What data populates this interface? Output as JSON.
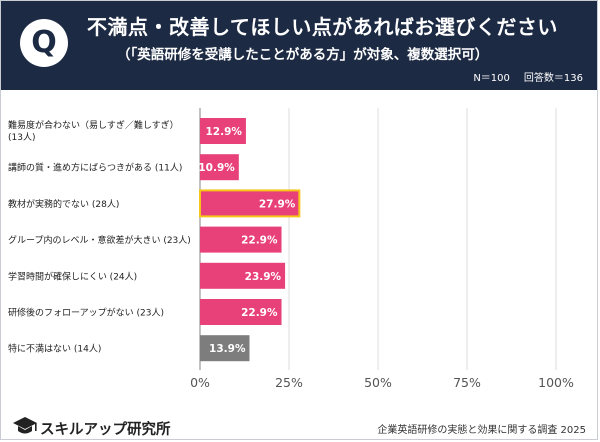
{
  "header": {
    "q_mark": "Q",
    "question": "不満点・改善してほしい点があればお選びください",
    "subtitle": "（「英語研修を受講したことがある方」が対象、複数選択可）",
    "sample_size": "N＝100",
    "answer_count": "回答数＝136"
  },
  "chart_data": {
    "type": "bar",
    "orientation": "horizontal",
    "categories": [
      [
        "難易度が合わない（易しすぎ／難しすぎ）",
        "(13人)"
      ],
      [
        "講師の質・進め方にばらつきがある (11人)"
      ],
      [
        "教材が実務的でない (28人)"
      ],
      [
        "グループ内のレベル・意欲差が大きい (23人)"
      ],
      [
        "学習時間が確保しにくい (24人)"
      ],
      [
        "研修後のフォローアップがない (23人)"
      ],
      [
        "特に不満はない (14人)"
      ]
    ],
    "values": [
      12.9,
      10.9,
      27.9,
      22.9,
      23.9,
      22.9,
      13.9
    ],
    "value_labels": [
      "12.9%",
      "10.9%",
      "27.9%",
      "22.9%",
      "23.9%",
      "22.9%",
      "13.9%"
    ],
    "colors": [
      "#e8417a",
      "#e8417a",
      "#e8417a",
      "#e8417a",
      "#e8417a",
      "#e8417a",
      "#7d7d7d"
    ],
    "highlight_index": 2,
    "highlight_color": "#f5c518",
    "xlim": [
      0,
      100
    ],
    "xticks": [
      0,
      25,
      50,
      75,
      100
    ],
    "xtick_labels": [
      "0%",
      "25%",
      "50%",
      "75%",
      "100%"
    ],
    "grid": true
  },
  "footer": {
    "logo_text": "スキルアップ研究所",
    "source": "企業英語研修の実態と効果に関する調査 2025"
  }
}
